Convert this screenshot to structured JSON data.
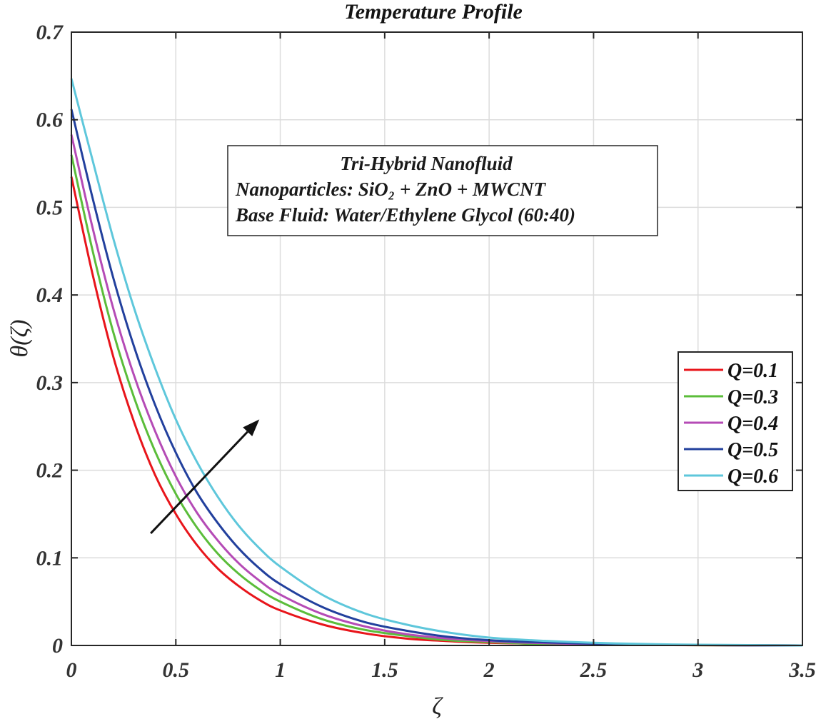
{
  "chart_data": {
    "type": "line",
    "title": "Temperature Profile",
    "xlabel": "ζ",
    "ylabel": "θ(ζ)",
    "xlim": [
      0,
      3.5
    ],
    "ylim": [
      0,
      0.7
    ],
    "xticks": [
      0,
      0.5,
      1,
      1.5,
      2,
      2.5,
      3,
      3.5
    ],
    "xtick_labels": [
      "0",
      "0.5",
      "1",
      "1.5",
      "2",
      "2.5",
      "3",
      "3.5"
    ],
    "yticks": [
      0,
      0.1,
      0.2,
      0.3,
      0.4,
      0.5,
      0.6,
      0.7
    ],
    "ytick_labels": [
      "0",
      "0.1",
      "0.2",
      "0.3",
      "0.4",
      "0.5",
      "0.6",
      "0.7"
    ],
    "grid": true,
    "legend_position": "right",
    "x": [
      0,
      0.1,
      0.2,
      0.3,
      0.4,
      0.5,
      0.6,
      0.7,
      0.8,
      0.9,
      1.0,
      1.2,
      1.4,
      1.6,
      1.8,
      2.0,
      2.2,
      2.5,
      2.8,
      3.0,
      3.5
    ],
    "series": [
      {
        "name": "Q=0.1",
        "color": "#e8151b",
        "values": [
          0.535,
          0.425,
          0.33,
          0.255,
          0.195,
          0.15,
          0.115,
          0.088,
          0.068,
          0.052,
          0.04,
          0.024,
          0.014,
          0.008,
          0.005,
          0.003,
          0.002,
          0.001,
          0.0005,
          0.0003,
          0.0
        ]
      },
      {
        "name": "Q=0.3",
        "color": "#5bbd3a",
        "values": [
          0.56,
          0.452,
          0.358,
          0.283,
          0.222,
          0.173,
          0.135,
          0.105,
          0.082,
          0.064,
          0.05,
          0.03,
          0.018,
          0.011,
          0.006,
          0.004,
          0.002,
          0.001,
          0.0006,
          0.0003,
          0.0
        ]
      },
      {
        "name": "Q=0.4",
        "color": "#b54bb6",
        "values": [
          0.583,
          0.478,
          0.385,
          0.308,
          0.245,
          0.193,
          0.152,
          0.12,
          0.094,
          0.074,
          0.058,
          0.036,
          0.022,
          0.013,
          0.008,
          0.005,
          0.003,
          0.0015,
          0.0007,
          0.0004,
          0.0
        ]
      },
      {
        "name": "Q=0.5",
        "color": "#22409d",
        "values": [
          0.612,
          0.512,
          0.42,
          0.341,
          0.275,
          0.22,
          0.175,
          0.14,
          0.111,
          0.088,
          0.07,
          0.044,
          0.027,
          0.017,
          0.01,
          0.006,
          0.004,
          0.002,
          0.0009,
          0.0005,
          0.0
        ]
      },
      {
        "name": "Q=0.6",
        "color": "#5ec7db",
        "values": [
          0.647,
          0.555,
          0.465,
          0.385,
          0.317,
          0.258,
          0.21,
          0.17,
          0.137,
          0.111,
          0.09,
          0.058,
          0.037,
          0.024,
          0.015,
          0.009,
          0.006,
          0.003,
          0.0015,
          0.0008,
          0.0
        ]
      }
    ],
    "annotation": {
      "lines": [
        "Tri-Hybrid Nanofluid",
        "Nanoparticles:  SiO₂ + ZnO + MWCNT",
        "Base Fluid: Water/Ethylene Glycol (60:40)"
      ]
    },
    "arrow": {
      "from": [
        0.38,
        0.128
      ],
      "to": [
        0.9,
        0.258
      ],
      "meaning": "increasing Q"
    }
  }
}
